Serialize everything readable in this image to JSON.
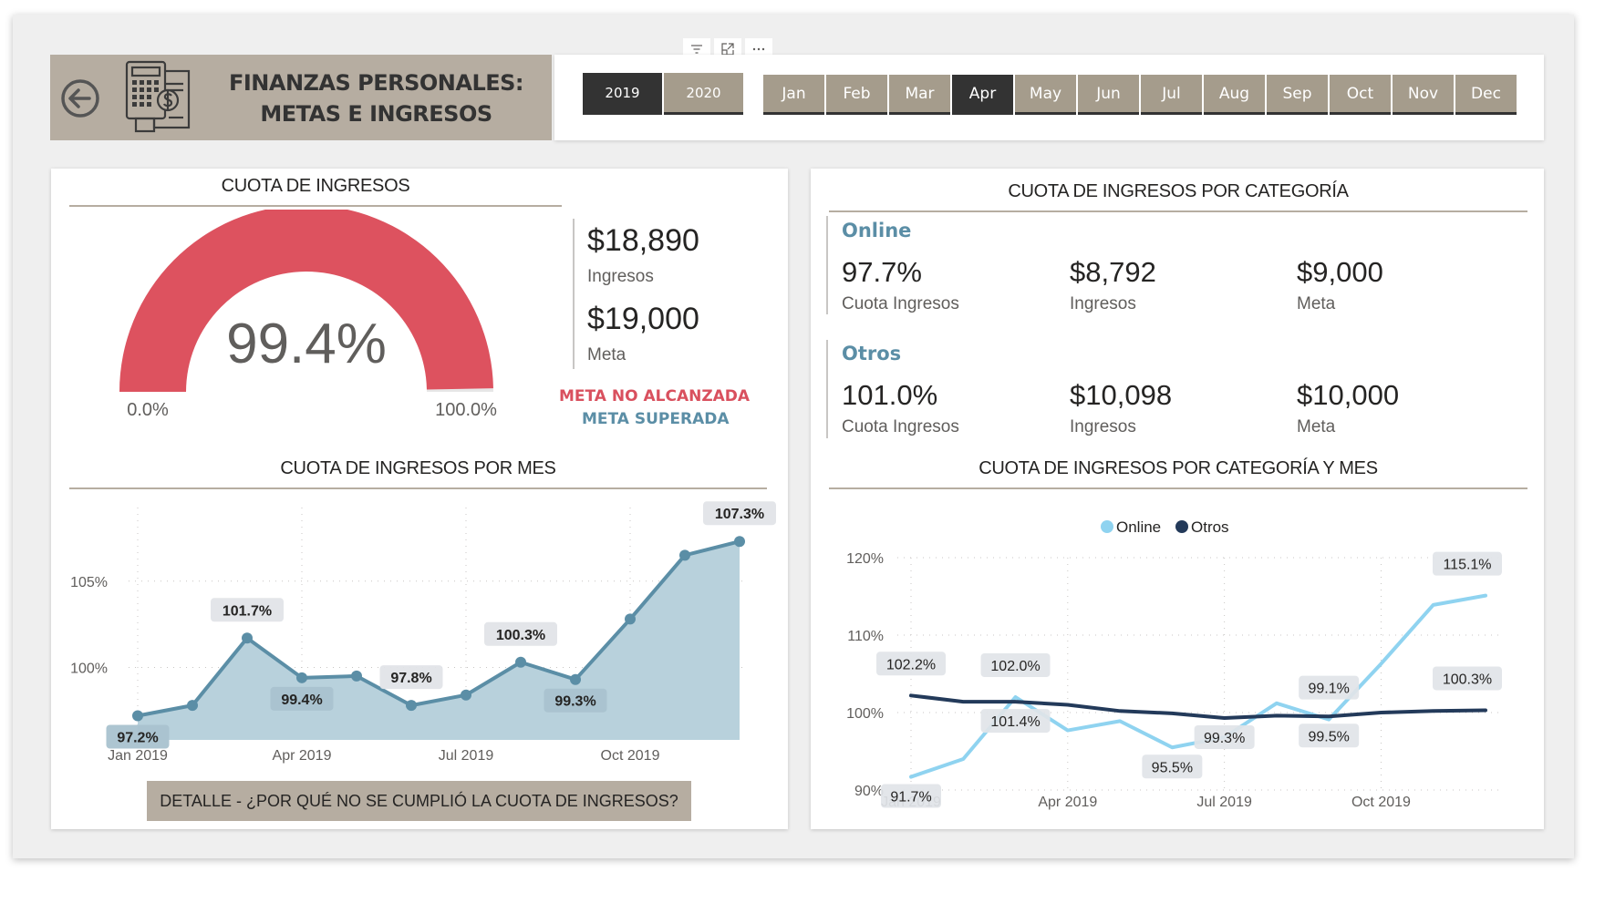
{
  "header": {
    "title_line1": "FINANZAS PERSONALES:",
    "title_line2": "METAS E INGRESOS",
    "back_icon": "arrow-left-circle-icon",
    "logo_icon": "calculator-invoice-icon"
  },
  "visual_toolbar": {
    "filter_icon": "filter-icon",
    "focus_icon": "focus-mode-icon",
    "more_icon": "more-options-icon"
  },
  "year_slicer": {
    "options": [
      "2019",
      "2020"
    ],
    "selected": "2019"
  },
  "month_slicer": {
    "options": [
      "Jan",
      "Feb",
      "Mar",
      "Apr",
      "May",
      "Jun",
      "Jul",
      "Aug",
      "Sep",
      "Oct",
      "Nov",
      "Dec"
    ],
    "selected": "Apr"
  },
  "gauge": {
    "title": "CUOTA DE INGRESOS",
    "value_label": "99.4%",
    "value": 99.4,
    "min_label": "0.0%",
    "max_label": "100.0%",
    "min": 0,
    "max": 100,
    "color": "#dd525f"
  },
  "kpi": {
    "ingresos_value": "$18,890",
    "ingresos_label": "Ingresos",
    "meta_value": "$19,000",
    "meta_label": "Meta",
    "status_not_met": "META NO ALCANZADA",
    "status_exceeded": "META SUPERADA",
    "red": "#d9505e",
    "blue": "#5b8ea6"
  },
  "category": {
    "title": "CUOTA DE INGRESOS POR CATEGORÍA",
    "rows": [
      {
        "name": "Online",
        "cuota": "97.7%",
        "cuota_label": "Cuota Ingresos",
        "ingresos": "$8,792",
        "ingresos_label": "Ingresos",
        "meta": "$9,000",
        "meta_label": "Meta"
      },
      {
        "name": "Otros",
        "cuota": "101.0%",
        "cuota_label": "Cuota Ingresos",
        "ingresos": "$10,098",
        "ingresos_label": "Ingresos",
        "meta": "$10,000",
        "meta_label": "Meta"
      }
    ]
  },
  "detail_button": "DETALLE - ¿POR QUÉ NO SE CUMPLIÓ LA CUOTA DE INGRESOS?",
  "chart_data": [
    {
      "type": "area",
      "title": "CUOTA DE INGRESOS POR MES",
      "x": [
        "Jan 2019",
        "Feb 2019",
        "Mar 2019",
        "Apr 2019",
        "May 2019",
        "Jun 2019",
        "Jul 2019",
        "Aug 2019",
        "Sep 2019",
        "Oct 2019",
        "Nov 2019",
        "Dec 2019"
      ],
      "x_ticks": [
        "Jan 2019",
        "Apr 2019",
        "Jul 2019",
        "Oct 2019"
      ],
      "values": [
        97.2,
        97.8,
        101.7,
        99.4,
        99.5,
        97.8,
        98.4,
        100.3,
        99.3,
        102.8,
        106.5,
        107.3
      ],
      "data_labels": [
        {
          "index": 0,
          "text": "97.2%"
        },
        {
          "index": 2,
          "text": "101.7%"
        },
        {
          "index": 3,
          "text": "99.4%"
        },
        {
          "index": 5,
          "text": "97.8%"
        },
        {
          "index": 7,
          "text": "100.3%"
        },
        {
          "index": 8,
          "text": "99.3%"
        },
        {
          "index": 11,
          "text": "107.3%"
        }
      ],
      "y_ticks": [
        "100%",
        "105%"
      ],
      "ylim": [
        95.8,
        109
      ],
      "grid": true,
      "color": "#5b8ea6",
      "fill": "#b8d1dc"
    },
    {
      "type": "line",
      "title": "CUOTA DE INGRESOS POR CATEGORÍA Y MES",
      "legend": [
        "Online",
        "Otros"
      ],
      "legend_position": "top-center",
      "x": [
        "Jan 2019",
        "Feb 2019",
        "Mar 2019",
        "Apr 2019",
        "May 2019",
        "Jun 2019",
        "Jul 2019",
        "Aug 2019",
        "Sep 2019",
        "Oct 2019",
        "Nov 2019",
        "Dec 2019"
      ],
      "x_ticks": [
        "Jan 2019",
        "Apr 2019",
        "Jul 2019",
        "Oct 2019"
      ],
      "series": [
        {
          "name": "Online",
          "color": "#8fd3f0",
          "values": [
            91.7,
            94.0,
            102.0,
            97.7,
            98.9,
            95.5,
            96.8,
            101.2,
            99.1,
            106.3,
            113.9,
            115.1
          ]
        },
        {
          "name": "Otros",
          "color": "#233a5a",
          "values": [
            102.2,
            101.4,
            101.4,
            101.0,
            100.2,
            99.9,
            99.3,
            99.6,
            99.5,
            100.0,
            100.2,
            100.3
          ]
        }
      ],
      "data_labels": [
        {
          "series": "Online",
          "index": 0,
          "text": "91.7%"
        },
        {
          "series": "Otros",
          "index": 0,
          "text": "102.2%"
        },
        {
          "series": "Online",
          "index": 2,
          "text": "102.0%"
        },
        {
          "series": "Otros",
          "index": 2,
          "text": "101.4%"
        },
        {
          "series": "Online",
          "index": 5,
          "text": "95.5%"
        },
        {
          "series": "Otros",
          "index": 6,
          "text": "99.3%"
        },
        {
          "series": "Online",
          "index": 8,
          "text": "99.1%"
        },
        {
          "series": "Otros",
          "index": 8,
          "text": "99.5%"
        },
        {
          "series": "Online",
          "index": 11,
          "text": "115.1%"
        },
        {
          "series": "Otros",
          "index": 11,
          "text": "100.3%"
        }
      ],
      "y_ticks": [
        "90%",
        "100%",
        "110%",
        "120%"
      ],
      "ylim": [
        90,
        120
      ],
      "grid": true
    }
  ]
}
